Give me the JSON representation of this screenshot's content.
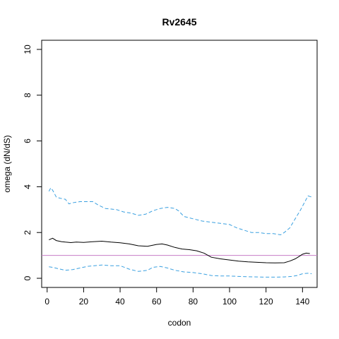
{
  "chart_data": {
    "type": "line",
    "title": "Rv2645",
    "xlabel": "codon",
    "ylabel": "omega (dN/dS)",
    "xlim": [
      -3,
      148
    ],
    "ylim": [
      -0.4,
      10.4
    ],
    "x_ticks": [
      0,
      20,
      40,
      60,
      80,
      100,
      120,
      140
    ],
    "y_ticks": [
      0,
      2,
      4,
      6,
      8,
      10
    ],
    "reference_line": {
      "y": 1,
      "color": "#c77cc7"
    },
    "colors": {
      "mean": "#000000",
      "bounds": "#3aa0e0"
    },
    "series": [
      {
        "style": "solid",
        "x": [
          1,
          3,
          5,
          8,
          10,
          13,
          16,
          20,
          25,
          30,
          35,
          40,
          45,
          50,
          55,
          60,
          63,
          66,
          70,
          74,
          78,
          82,
          86,
          90,
          95,
          100,
          105,
          110,
          115,
          120,
          125,
          130,
          133,
          136,
          138,
          140,
          142,
          144
        ],
        "y": [
          1.68,
          1.75,
          1.65,
          1.6,
          1.58,
          1.56,
          1.58,
          1.57,
          1.6,
          1.62,
          1.58,
          1.55,
          1.5,
          1.42,
          1.4,
          1.48,
          1.5,
          1.45,
          1.35,
          1.28,
          1.25,
          1.2,
          1.1,
          0.92,
          0.85,
          0.8,
          0.75,
          0.72,
          0.7,
          0.68,
          0.67,
          0.68,
          0.75,
          0.85,
          0.95,
          1.05,
          1.1,
          1.08
        ]
      },
      {
        "style": "dashed",
        "x": [
          1,
          2,
          3,
          5,
          7,
          10,
          12,
          14,
          18,
          22,
          25,
          28,
          32,
          38,
          42,
          46,
          50,
          54,
          58,
          62,
          66,
          70,
          72,
          75,
          80,
          85,
          90,
          95,
          100,
          104,
          108,
          112,
          116,
          120,
          124,
          128,
          130,
          133,
          136,
          139,
          141,
          143,
          145
        ],
        "y": [
          3.8,
          3.95,
          3.85,
          3.55,
          3.5,
          3.45,
          3.25,
          3.3,
          3.35,
          3.35,
          3.35,
          3.2,
          3.05,
          3.0,
          2.9,
          2.85,
          2.75,
          2.8,
          2.95,
          3.05,
          3.1,
          3.05,
          2.95,
          2.7,
          2.6,
          2.5,
          2.45,
          2.4,
          2.35,
          2.2,
          2.1,
          2.0,
          2.0,
          1.95,
          1.95,
          1.9,
          2.0,
          2.2,
          2.6,
          3.0,
          3.3,
          3.6,
          3.55
        ]
      },
      {
        "style": "dashed",
        "x": [
          1,
          3,
          6,
          10,
          14,
          18,
          22,
          26,
          30,
          35,
          40,
          45,
          50,
          55,
          58,
          62,
          66,
          70,
          75,
          80,
          85,
          90,
          95,
          100,
          105,
          110,
          115,
          120,
          125,
          130,
          134,
          137,
          140,
          143,
          145
        ],
        "y": [
          0.5,
          0.48,
          0.42,
          0.35,
          0.38,
          0.45,
          0.52,
          0.55,
          0.58,
          0.55,
          0.55,
          0.4,
          0.3,
          0.35,
          0.48,
          0.52,
          0.45,
          0.35,
          0.28,
          0.25,
          0.2,
          0.12,
          0.1,
          0.1,
          0.08,
          0.07,
          0.06,
          0.05,
          0.05,
          0.06,
          0.08,
          0.12,
          0.2,
          0.22,
          0.2
        ]
      }
    ]
  }
}
